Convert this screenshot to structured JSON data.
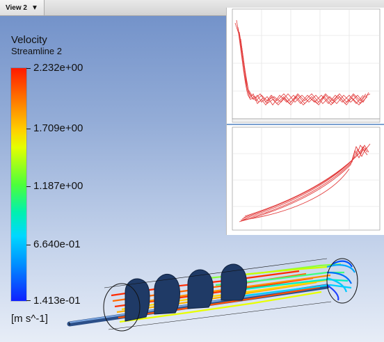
{
  "tab": {
    "label": "View 2",
    "icon": "dropdown-arrow-icon"
  },
  "legend": {
    "title": "Velocity",
    "subtitle": "Streamline 2",
    "ticks": [
      "2.232e+00",
      "1.709e+00",
      "1.187e+00",
      "6.640e-01",
      "1.413e-01"
    ],
    "units": "[m s^-1]",
    "gradient_colors": [
      "#ff1a00",
      "#ffd200",
      "#4dff3a",
      "#00d8ff",
      "#1020ff"
    ]
  },
  "charts": {
    "line_color": "#e23b3b",
    "top": {
      "type": "line",
      "grid": true
    },
    "bottom": {
      "type": "line",
      "grid": true
    }
  },
  "colors": {
    "geometry": "#243d63",
    "background_top": "#6f8fc8",
    "background_bottom": "#e7edf7"
  }
}
